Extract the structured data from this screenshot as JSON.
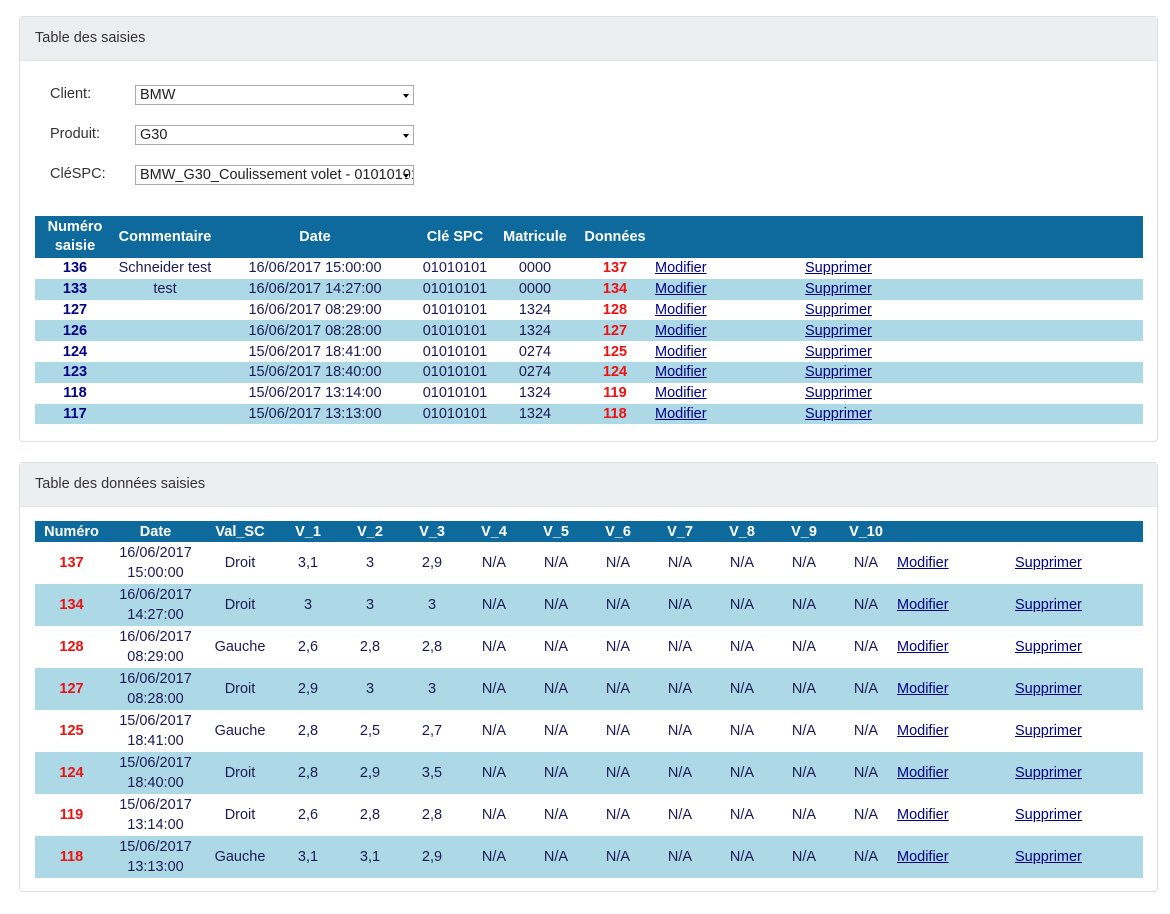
{
  "panel1": {
    "title": "Table des saisies",
    "client_label": "Client:",
    "client_value": "BMW",
    "produit_label": "Produit:",
    "produit_value": "G30",
    "clespc_label": "CléSPC:",
    "clespc_value": "BMW_G30_Coulissement volet - 01010101",
    "headers": [
      "Numéro saisie",
      "Commentaire",
      "Date",
      "Clé SPC",
      "Matricule",
      "Données"
    ],
    "rows": [
      {
        "num": "136",
        "comment": "Schneider test",
        "date": "16/06/2017 15:00:00",
        "cle": "01010101",
        "matricule": "0000",
        "donnees": "137",
        "modifier": "Modifier",
        "supprimer": "Supprimer"
      },
      {
        "num": "133",
        "comment": "test",
        "date": "16/06/2017 14:27:00",
        "cle": "01010101",
        "matricule": "0000",
        "donnees": "134",
        "modifier": "Modifier",
        "supprimer": "Supprimer"
      },
      {
        "num": "127",
        "comment": "",
        "date": "16/06/2017 08:29:00",
        "cle": "01010101",
        "matricule": "1324",
        "donnees": "128",
        "modifier": "Modifier",
        "supprimer": "Supprimer"
      },
      {
        "num": "126",
        "comment": "",
        "date": "16/06/2017 08:28:00",
        "cle": "01010101",
        "matricule": "1324",
        "donnees": "127",
        "modifier": "Modifier",
        "supprimer": "Supprimer"
      },
      {
        "num": "124",
        "comment": "",
        "date": "15/06/2017 18:41:00",
        "cle": "01010101",
        "matricule": "0274",
        "donnees": "125",
        "modifier": "Modifier",
        "supprimer": "Supprimer"
      },
      {
        "num": "123",
        "comment": "",
        "date": "15/06/2017 18:40:00",
        "cle": "01010101",
        "matricule": "0274",
        "donnees": "124",
        "modifier": "Modifier",
        "supprimer": "Supprimer"
      },
      {
        "num": "118",
        "comment": "",
        "date": "15/06/2017 13:14:00",
        "cle": "01010101",
        "matricule": "1324",
        "donnees": "119",
        "modifier": "Modifier",
        "supprimer": "Supprimer"
      },
      {
        "num": "117",
        "comment": "",
        "date": "15/06/2017 13:13:00",
        "cle": "01010101",
        "matricule": "1324",
        "donnees": "118",
        "modifier": "Modifier",
        "supprimer": "Supprimer"
      }
    ]
  },
  "panel2": {
    "title": "Table des données saisies",
    "headers": [
      "Numéro",
      "Date",
      "Val_SC",
      "V_1",
      "V_2",
      "V_3",
      "V_4",
      "V_5",
      "V_6",
      "V_7",
      "V_8",
      "V_9",
      "V_10"
    ],
    "rows": [
      {
        "num": "137",
        "date1": "16/06/2017",
        "date2": "15:00:00",
        "valsc": "Droit",
        "v1": "3,1",
        "v2": "3",
        "v3": "2,9",
        "v4": "N/A",
        "v5": "N/A",
        "v6": "N/A",
        "v7": "N/A",
        "v8": "N/A",
        "v9": "N/A",
        "v10": "N/A",
        "modifier": "Modifier",
        "supprimer": "Supprimer"
      },
      {
        "num": "134",
        "date1": "16/06/2017",
        "date2": "14:27:00",
        "valsc": "Droit",
        "v1": "3",
        "v2": "3",
        "v3": "3",
        "v4": "N/A",
        "v5": "N/A",
        "v6": "N/A",
        "v7": "N/A",
        "v8": "N/A",
        "v9": "N/A",
        "v10": "N/A",
        "modifier": "Modifier",
        "supprimer": "Supprimer"
      },
      {
        "num": "128",
        "date1": "16/06/2017",
        "date2": "08:29:00",
        "valsc": "Gauche",
        "v1": "2,6",
        "v2": "2,8",
        "v3": "2,8",
        "v4": "N/A",
        "v5": "N/A",
        "v6": "N/A",
        "v7": "N/A",
        "v8": "N/A",
        "v9": "N/A",
        "v10": "N/A",
        "modifier": "Modifier",
        "supprimer": "Supprimer"
      },
      {
        "num": "127",
        "date1": "16/06/2017",
        "date2": "08:28:00",
        "valsc": "Droit",
        "v1": "2,9",
        "v2": "3",
        "v3": "3",
        "v4": "N/A",
        "v5": "N/A",
        "v6": "N/A",
        "v7": "N/A",
        "v8": "N/A",
        "v9": "N/A",
        "v10": "N/A",
        "modifier": "Modifier",
        "supprimer": "Supprimer"
      },
      {
        "num": "125",
        "date1": "15/06/2017",
        "date2": "18:41:00",
        "valsc": "Gauche",
        "v1": "2,8",
        "v2": "2,5",
        "v3": "2,7",
        "v4": "N/A",
        "v5": "N/A",
        "v6": "N/A",
        "v7": "N/A",
        "v8": "N/A",
        "v9": "N/A",
        "v10": "N/A",
        "modifier": "Modifier",
        "supprimer": "Supprimer"
      },
      {
        "num": "124",
        "date1": "15/06/2017",
        "date2": "18:40:00",
        "valsc": "Droit",
        "v1": "2,8",
        "v2": "2,9",
        "v3": "3,5",
        "v4": "N/A",
        "v5": "N/A",
        "v6": "N/A",
        "v7": "N/A",
        "v8": "N/A",
        "v9": "N/A",
        "v10": "N/A",
        "modifier": "Modifier",
        "supprimer": "Supprimer"
      },
      {
        "num": "119",
        "date1": "15/06/2017",
        "date2": "13:14:00",
        "valsc": "Droit",
        "v1": "2,6",
        "v2": "2,8",
        "v3": "2,8",
        "v4": "N/A",
        "v5": "N/A",
        "v6": "N/A",
        "v7": "N/A",
        "v8": "N/A",
        "v9": "N/A",
        "v10": "N/A",
        "modifier": "Modifier",
        "supprimer": "Supprimer"
      },
      {
        "num": "118",
        "date1": "15/06/2017",
        "date2": "13:13:00",
        "valsc": "Gauche",
        "v1": "3,1",
        "v2": "3,1",
        "v3": "2,9",
        "v4": "N/A",
        "v5": "N/A",
        "v6": "N/A",
        "v7": "N/A",
        "v8": "N/A",
        "v9": "N/A",
        "v10": "N/A",
        "modifier": "Modifier",
        "supprimer": "Supprimer"
      }
    ]
  }
}
